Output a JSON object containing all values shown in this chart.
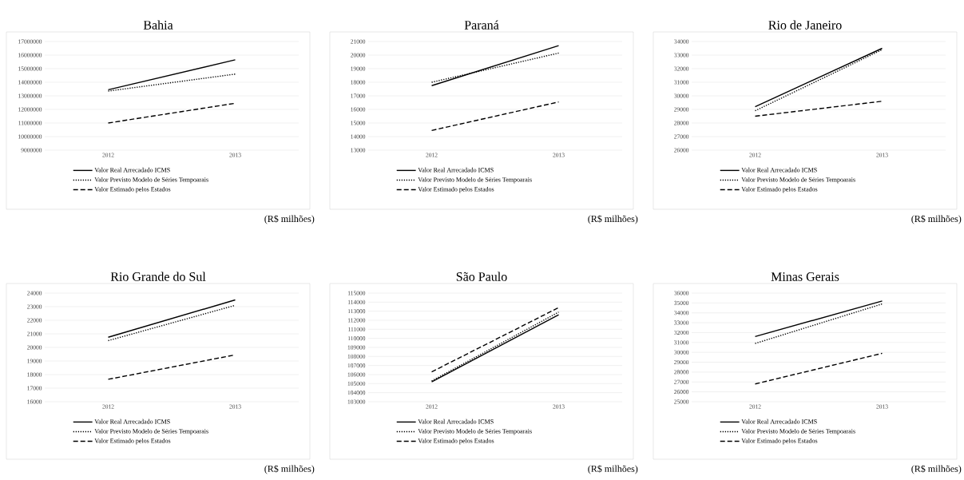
{
  "chart_data": [
    {
      "type": "line",
      "title": "Bahia",
      "categories": [
        "2012",
        "2013"
      ],
      "ylim": [
        9000000,
        17000000
      ],
      "yticks": [
        9000000,
        10000000,
        11000000,
        12000000,
        13000000,
        14000000,
        15000000,
        16000000,
        17000000
      ],
      "grid": "y",
      "legend": "bottom",
      "annotations": [
        "(R$ milhões)"
      ],
      "series": [
        {
          "name": "Valor Real Arrecadado ICMS",
          "color": "#000000",
          "line_style": "solid",
          "values": [
            13450000,
            15650000
          ]
        },
        {
          "name": "Valor Previsto Modelo de Séries Tempoarais",
          "color": "#000000",
          "line_style": "dotted",
          "values": [
            13350000,
            14600000
          ]
        },
        {
          "name": "Valor Estimado pelos Estados",
          "color": "#000000",
          "line_style": "dashed",
          "values": [
            11000000,
            12450000
          ]
        }
      ]
    },
    {
      "type": "line",
      "title": "Paraná",
      "categories": [
        "2012",
        "2013"
      ],
      "ylim": [
        13000,
        21000
      ],
      "yticks": [
        13000,
        14000,
        15000,
        16000,
        17000,
        18000,
        19000,
        20000,
        21000
      ],
      "grid": "y",
      "legend": "bottom",
      "annotations": [
        "(R$ milhões)"
      ],
      "series": [
        {
          "name": "Valor Real Arrecadado ICMS",
          "color": "#000000",
          "line_style": "solid",
          "values": [
            17750,
            20700
          ]
        },
        {
          "name": "Valor Previsto Modelo de Séries Tempoarais",
          "color": "#000000",
          "line_style": "dotted",
          "values": [
            18000,
            20150
          ]
        },
        {
          "name": "Valor Estimado pelos Estados",
          "color": "#000000",
          "line_style": "dashed",
          "values": [
            14450,
            16550
          ]
        }
      ]
    },
    {
      "type": "line",
      "title": "Rio de Janeiro",
      "categories": [
        "2012",
        "2013"
      ],
      "ylim": [
        26000,
        34000
      ],
      "yticks": [
        26000,
        27000,
        28000,
        29000,
        30000,
        31000,
        32000,
        33000,
        34000
      ],
      "grid": "y",
      "legend": "bottom",
      "annotations": [
        "(R$ milhões)"
      ],
      "series": [
        {
          "name": "Valor Real Arrecadado ICMS",
          "color": "#000000",
          "line_style": "solid",
          "values": [
            29200,
            33500
          ]
        },
        {
          "name": "Valor Previsto Modelo de Séries Tempoarais",
          "color": "#000000",
          "line_style": "dotted",
          "values": [
            28900,
            33400
          ]
        },
        {
          "name": "Valor Estimado pelos Estados",
          "color": "#000000",
          "line_style": "dashed",
          "values": [
            28500,
            29600
          ]
        }
      ]
    },
    {
      "type": "line",
      "title": "Rio Grande do Sul",
      "categories": [
        "2012",
        "2013"
      ],
      "ylim": [
        16000,
        24000
      ],
      "yticks": [
        16000,
        17000,
        18000,
        19000,
        20000,
        21000,
        22000,
        23000,
        24000
      ],
      "grid": "y",
      "legend": "bottom",
      "annotations": [
        "(R$ milhões)"
      ],
      "series": [
        {
          "name": "Valor Real Arrecadado ICMS",
          "color": "#000000",
          "line_style": "solid",
          "values": [
            20750,
            23500
          ]
        },
        {
          "name": "Valor Previsto Modelo de Séries Tempoarais",
          "color": "#000000",
          "line_style": "dotted",
          "values": [
            20500,
            23100
          ]
        },
        {
          "name": "Valor Estimado pelos Estados",
          "color": "#000000",
          "line_style": "dashed",
          "values": [
            17650,
            19450
          ]
        }
      ]
    },
    {
      "type": "line",
      "title": "São Paulo",
      "categories": [
        "2012",
        "2013"
      ],
      "ylim": [
        103000,
        115000
      ],
      "yticks": [
        103000,
        104000,
        105000,
        106000,
        107000,
        108000,
        109000,
        110000,
        111000,
        112000,
        113000,
        114000,
        115000
      ],
      "grid": "y",
      "legend": "bottom",
      "annotations": [
        "(R$ milhões)"
      ],
      "series": [
        {
          "name": "Valor Real Arrecadado ICMS",
          "color": "#000000",
          "line_style": "solid",
          "values": [
            105200,
            112600
          ]
        },
        {
          "name": "Valor Previsto Modelo de Séries Tempoarais",
          "color": "#000000",
          "line_style": "dotted",
          "values": [
            105300,
            112900
          ]
        },
        {
          "name": "Valor Estimado pelos Estados",
          "color": "#000000",
          "line_style": "dashed",
          "values": [
            106300,
            113400
          ]
        }
      ]
    },
    {
      "type": "line",
      "title": "Minas Gerais",
      "categories": [
        "2012",
        "2013"
      ],
      "ylim": [
        25000,
        36000
      ],
      "yticks": [
        25000,
        26000,
        27000,
        28000,
        29000,
        30000,
        31000,
        32000,
        33000,
        34000,
        35000,
        36000
      ],
      "grid": "y",
      "legend": "bottom",
      "annotations": [
        "(R$ milhões)"
      ],
      "series": [
        {
          "name": "Valor Real Arrecadado ICMS",
          "color": "#000000",
          "line_style": "solid",
          "values": [
            31600,
            35200
          ]
        },
        {
          "name": "Valor Previsto Modelo de Séries Tempoarais",
          "color": "#000000",
          "line_style": "dotted",
          "values": [
            30900,
            34900
          ]
        },
        {
          "name": "Valor Estimado pelos Estados",
          "color": "#000000",
          "line_style": "dashed",
          "values": [
            26800,
            29900
          ]
        }
      ]
    }
  ]
}
